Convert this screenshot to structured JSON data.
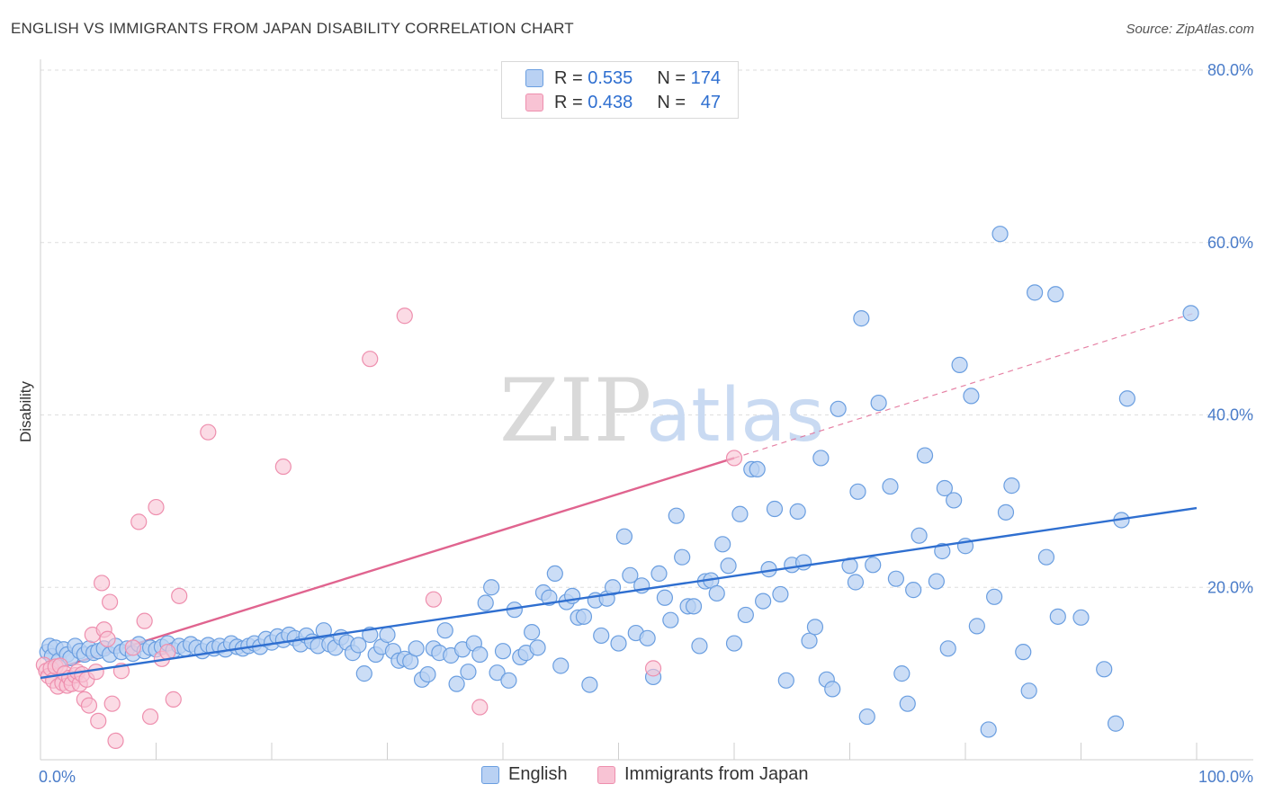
{
  "header": {
    "title": "ENGLISH VS IMMIGRANTS FROM JAPAN DISABILITY CORRELATION CHART",
    "source": "Source: ZipAtlas.com"
  },
  "watermark": {
    "part1": "ZIP",
    "part2": "atlas"
  },
  "legend": {
    "rows": [
      {
        "r_label": "R =",
        "r_value": "0.535",
        "n_label": "N =",
        "n_value": "174"
      },
      {
        "r_label": "R =",
        "r_value": "0.438",
        "n_label": "N =",
        "n_value": "47"
      }
    ]
  },
  "bottom_legend": {
    "english": "English",
    "japan": "Immigrants from Japan"
  },
  "colors": {
    "english_fill": "#b9d1f3",
    "english_stroke": "#6a9ee0",
    "english_line": "#2f6fd0",
    "japan_fill": "#f8c3d4",
    "japan_stroke": "#ee8fae",
    "japan_line": "#e0648f"
  },
  "chart_data": {
    "type": "scatter",
    "title": "ENGLISH VS IMMIGRANTS FROM JAPAN DISABILITY CORRELATION CHART",
    "xlabel": "",
    "ylabel": "Disability",
    "xlim": [
      0,
      100
    ],
    "ylim": [
      0,
      80
    ],
    "x_tick_labels": [
      "0.0%",
      "100.0%"
    ],
    "y_tick_labels": [
      "20.0%",
      "40.0%",
      "60.0%",
      "80.0%"
    ],
    "y_ticks": [
      20,
      40,
      60,
      80
    ],
    "series": [
      {
        "name": "English",
        "r": 0.535,
        "n": 174,
        "trend": {
          "x0": 0,
          "y0": 9.5,
          "x1": 100,
          "y1": 29.2
        },
        "points": [
          [
            0.6,
            12.5
          ],
          [
            0.8,
            13.2
          ],
          [
            1.0,
            12.0
          ],
          [
            1.3,
            13.0
          ],
          [
            1.6,
            11.5
          ],
          [
            2.0,
            12.8
          ],
          [
            2.3,
            12.2
          ],
          [
            2.6,
            11.8
          ],
          [
            3.0,
            13.2
          ],
          [
            3.4,
            12.6
          ],
          [
            3.8,
            12.2
          ],
          [
            4.2,
            12.9
          ],
          [
            4.6,
            12.4
          ],
          [
            5.0,
            12.6
          ],
          [
            5.5,
            12.9
          ],
          [
            6.0,
            12.2
          ],
          [
            6.5,
            13.2
          ],
          [
            7.0,
            12.5
          ],
          [
            7.5,
            12.9
          ],
          [
            8.0,
            12.3
          ],
          [
            8.5,
            13.4
          ],
          [
            9.0,
            12.6
          ],
          [
            9.5,
            13.0
          ],
          [
            10.0,
            12.8
          ],
          [
            10.5,
            13.1
          ],
          [
            11.0,
            13.5
          ],
          [
            11.5,
            12.7
          ],
          [
            12.0,
            13.2
          ],
          [
            12.5,
            12.9
          ],
          [
            13.0,
            13.4
          ],
          [
            13.5,
            13.0
          ],
          [
            14.0,
            12.6
          ],
          [
            14.5,
            13.3
          ],
          [
            15.0,
            12.9
          ],
          [
            15.5,
            13.2
          ],
          [
            16.0,
            12.8
          ],
          [
            16.5,
            13.5
          ],
          [
            17.0,
            13.1
          ],
          [
            17.5,
            12.9
          ],
          [
            18.0,
            13.2
          ],
          [
            18.5,
            13.5
          ],
          [
            19.0,
            13.1
          ],
          [
            19.5,
            14.0
          ],
          [
            20.0,
            13.6
          ],
          [
            20.5,
            14.3
          ],
          [
            21.0,
            13.9
          ],
          [
            21.5,
            14.5
          ],
          [
            22.0,
            14.1
          ],
          [
            22.5,
            13.4
          ],
          [
            23.0,
            14.4
          ],
          [
            23.5,
            13.7
          ],
          [
            24.0,
            13.2
          ],
          [
            24.5,
            15.0
          ],
          [
            25.0,
            13.4
          ],
          [
            25.5,
            13.0
          ],
          [
            26.0,
            14.2
          ],
          [
            26.5,
            13.6
          ],
          [
            27.0,
            12.4
          ],
          [
            27.5,
            13.3
          ],
          [
            28.0,
            10.0
          ],
          [
            28.5,
            14.5
          ],
          [
            29.0,
            12.2
          ],
          [
            29.5,
            13.1
          ],
          [
            30.0,
            14.5
          ],
          [
            30.5,
            12.6
          ],
          [
            31.0,
            11.5
          ],
          [
            31.5,
            11.7
          ],
          [
            32.0,
            11.4
          ],
          [
            32.5,
            12.9
          ],
          [
            33.0,
            9.3
          ],
          [
            33.5,
            9.9
          ],
          [
            34.0,
            12.9
          ],
          [
            34.5,
            12.4
          ],
          [
            35.0,
            15.0
          ],
          [
            35.5,
            12.1
          ],
          [
            36.0,
            8.8
          ],
          [
            36.5,
            12.8
          ],
          [
            37.0,
            10.2
          ],
          [
            37.5,
            13.5
          ],
          [
            38.0,
            12.2
          ],
          [
            38.5,
            18.2
          ],
          [
            39.0,
            20.0
          ],
          [
            39.5,
            10.1
          ],
          [
            40.0,
            12.6
          ],
          [
            40.5,
            9.2
          ],
          [
            41.0,
            17.4
          ],
          [
            41.5,
            11.9
          ],
          [
            42.0,
            12.4
          ],
          [
            42.5,
            14.8
          ],
          [
            43.0,
            13.0
          ],
          [
            43.5,
            19.4
          ],
          [
            44.0,
            18.8
          ],
          [
            44.5,
            21.6
          ],
          [
            45.0,
            10.9
          ],
          [
            45.5,
            18.3
          ],
          [
            46.0,
            19.0
          ],
          [
            46.5,
            16.5
          ],
          [
            47.0,
            16.6
          ],
          [
            47.5,
            8.7
          ],
          [
            48.0,
            18.5
          ],
          [
            48.5,
            14.4
          ],
          [
            49.0,
            18.7
          ],
          [
            49.5,
            20.0
          ],
          [
            50.0,
            13.5
          ],
          [
            50.5,
            25.9
          ],
          [
            51.0,
            21.4
          ],
          [
            51.5,
            14.7
          ],
          [
            52.0,
            20.2
          ],
          [
            52.5,
            14.1
          ],
          [
            53.0,
            9.6
          ],
          [
            53.5,
            21.6
          ],
          [
            54.0,
            18.8
          ],
          [
            54.5,
            16.2
          ],
          [
            55.0,
            28.3
          ],
          [
            55.5,
            23.5
          ],
          [
            56.0,
            17.8
          ],
          [
            56.5,
            17.8
          ],
          [
            57.0,
            13.2
          ],
          [
            57.5,
            20.7
          ],
          [
            58.0,
            20.8
          ],
          [
            58.5,
            19.3
          ],
          [
            59.0,
            25.0
          ],
          [
            59.5,
            22.5
          ],
          [
            60.0,
            13.5
          ],
          [
            60.5,
            28.5
          ],
          [
            61.0,
            16.8
          ],
          [
            61.5,
            33.7
          ],
          [
            62.0,
            33.7
          ],
          [
            62.5,
            18.4
          ],
          [
            63.0,
            22.1
          ],
          [
            63.5,
            29.1
          ],
          [
            64.0,
            19.2
          ],
          [
            64.5,
            9.2
          ],
          [
            65.0,
            22.6
          ],
          [
            65.5,
            28.8
          ],
          [
            66.0,
            22.9
          ],
          [
            66.5,
            13.8
          ],
          [
            67.0,
            15.4
          ],
          [
            67.5,
            35.0
          ],
          [
            68.0,
            9.3
          ],
          [
            68.5,
            8.2
          ],
          [
            69.0,
            40.7
          ],
          [
            70.0,
            22.5
          ],
          [
            70.5,
            20.6
          ],
          [
            70.7,
            31.1
          ],
          [
            71.0,
            51.2
          ],
          [
            71.5,
            5.0
          ],
          [
            72.0,
            22.6
          ],
          [
            72.5,
            41.4
          ],
          [
            73.5,
            31.7
          ],
          [
            74.0,
            21.0
          ],
          [
            74.5,
            10.0
          ],
          [
            75.0,
            6.5
          ],
          [
            75.5,
            19.7
          ],
          [
            76.0,
            26.0
          ],
          [
            76.5,
            35.3
          ],
          [
            77.5,
            20.7
          ],
          [
            78.0,
            24.2
          ],
          [
            78.2,
            31.5
          ],
          [
            78.5,
            12.9
          ],
          [
            79.0,
            30.1
          ],
          [
            79.5,
            45.8
          ],
          [
            80.0,
            24.8
          ],
          [
            80.5,
            42.2
          ],
          [
            81.0,
            15.5
          ],
          [
            82.0,
            3.5
          ],
          [
            82.5,
            18.9
          ],
          [
            83.0,
            61.0
          ],
          [
            83.5,
            28.7
          ],
          [
            84.0,
            31.8
          ],
          [
            85.0,
            12.5
          ],
          [
            85.5,
            8.0
          ],
          [
            86.0,
            54.2
          ],
          [
            87.0,
            23.5
          ],
          [
            87.8,
            54.0
          ],
          [
            88.0,
            16.6
          ],
          [
            90.0,
            16.5
          ],
          [
            92.0,
            10.5
          ],
          [
            93.0,
            4.2
          ],
          [
            93.5,
            27.8
          ],
          [
            94.0,
            41.9
          ],
          [
            99.5,
            51.8
          ]
        ]
      },
      {
        "name": "Immigrants from Japan",
        "r": 0.438,
        "n": 47,
        "trend": {
          "x0": 0,
          "y0": 10.0,
          "x1": 60.0,
          "y1": 35.0,
          "dashed_to": {
            "x": 100,
            "y": 51.9
          }
        },
        "points": [
          [
            0.3,
            11.0
          ],
          [
            0.5,
            10.3
          ],
          [
            0.7,
            9.7
          ],
          [
            0.9,
            10.6
          ],
          [
            1.1,
            9.2
          ],
          [
            1.3,
            10.8
          ],
          [
            1.5,
            8.5
          ],
          [
            1.7,
            10.9
          ],
          [
            1.9,
            8.9
          ],
          [
            2.1,
            10.0
          ],
          [
            2.3,
            8.6
          ],
          [
            2.5,
            9.5
          ],
          [
            2.7,
            8.8
          ],
          [
            3.0,
            9.8
          ],
          [
            3.2,
            10.2
          ],
          [
            3.4,
            8.8
          ],
          [
            3.6,
            9.9
          ],
          [
            3.8,
            7.0
          ],
          [
            4.0,
            9.3
          ],
          [
            4.2,
            6.3
          ],
          [
            4.5,
            14.5
          ],
          [
            4.8,
            10.2
          ],
          [
            5.0,
            4.5
          ],
          [
            5.3,
            20.5
          ],
          [
            5.5,
            15.1
          ],
          [
            5.8,
            14.0
          ],
          [
            6.0,
            18.3
          ],
          [
            6.2,
            6.5
          ],
          [
            6.5,
            2.2
          ],
          [
            7.0,
            10.3
          ],
          [
            8.0,
            13.0
          ],
          [
            8.5,
            27.6
          ],
          [
            9.0,
            16.1
          ],
          [
            9.5,
            5.0
          ],
          [
            10.0,
            29.3
          ],
          [
            10.5,
            11.7
          ],
          [
            11.0,
            12.5
          ],
          [
            11.5,
            7.0
          ],
          [
            12.0,
            19.0
          ],
          [
            14.5,
            38.0
          ],
          [
            21.0,
            34.0
          ],
          [
            28.5,
            46.5
          ],
          [
            31.5,
            51.5
          ],
          [
            34.0,
            18.6
          ],
          [
            38.0,
            6.1
          ],
          [
            53.0,
            10.6
          ],
          [
            60.0,
            35.0
          ]
        ]
      }
    ]
  }
}
